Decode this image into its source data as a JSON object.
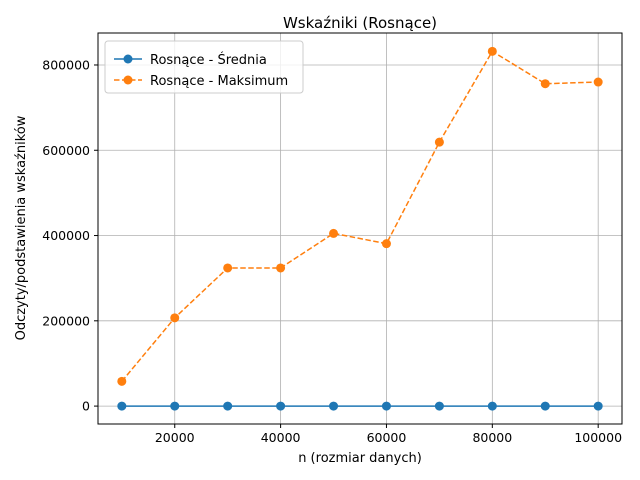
{
  "chart_data": {
    "type": "line",
    "title": "Wskaźniki (Rosnące)",
    "xlabel": "n (rozmiar danych)",
    "ylabel": "Odczyty/podstawienia wskaźników",
    "x": [
      10000,
      20000,
      30000,
      40000,
      50000,
      60000,
      70000,
      80000,
      90000,
      100000
    ],
    "xlim": [
      5500,
      104500
    ],
    "ylim": [
      -42000,
      875000
    ],
    "xticks": [
      20000,
      40000,
      60000,
      80000,
      100000
    ],
    "yticks": [
      0,
      200000,
      400000,
      600000,
      800000
    ],
    "grid": true,
    "legend_position": "top-left",
    "series": [
      {
        "name": "Rosnące - Średnia",
        "color": "#1f77b4",
        "linestyle": "solid",
        "values": [
          1,
          1,
          1,
          1,
          1,
          1,
          1,
          1,
          1,
          1
        ]
      },
      {
        "name": "Rosnące - Maksimum",
        "color": "#ff7f0e",
        "linestyle": "dashed",
        "values": [
          58000,
          207000,
          324000,
          324000,
          405000,
          381000,
          619000,
          832000,
          756000,
          760000
        ]
      }
    ]
  }
}
